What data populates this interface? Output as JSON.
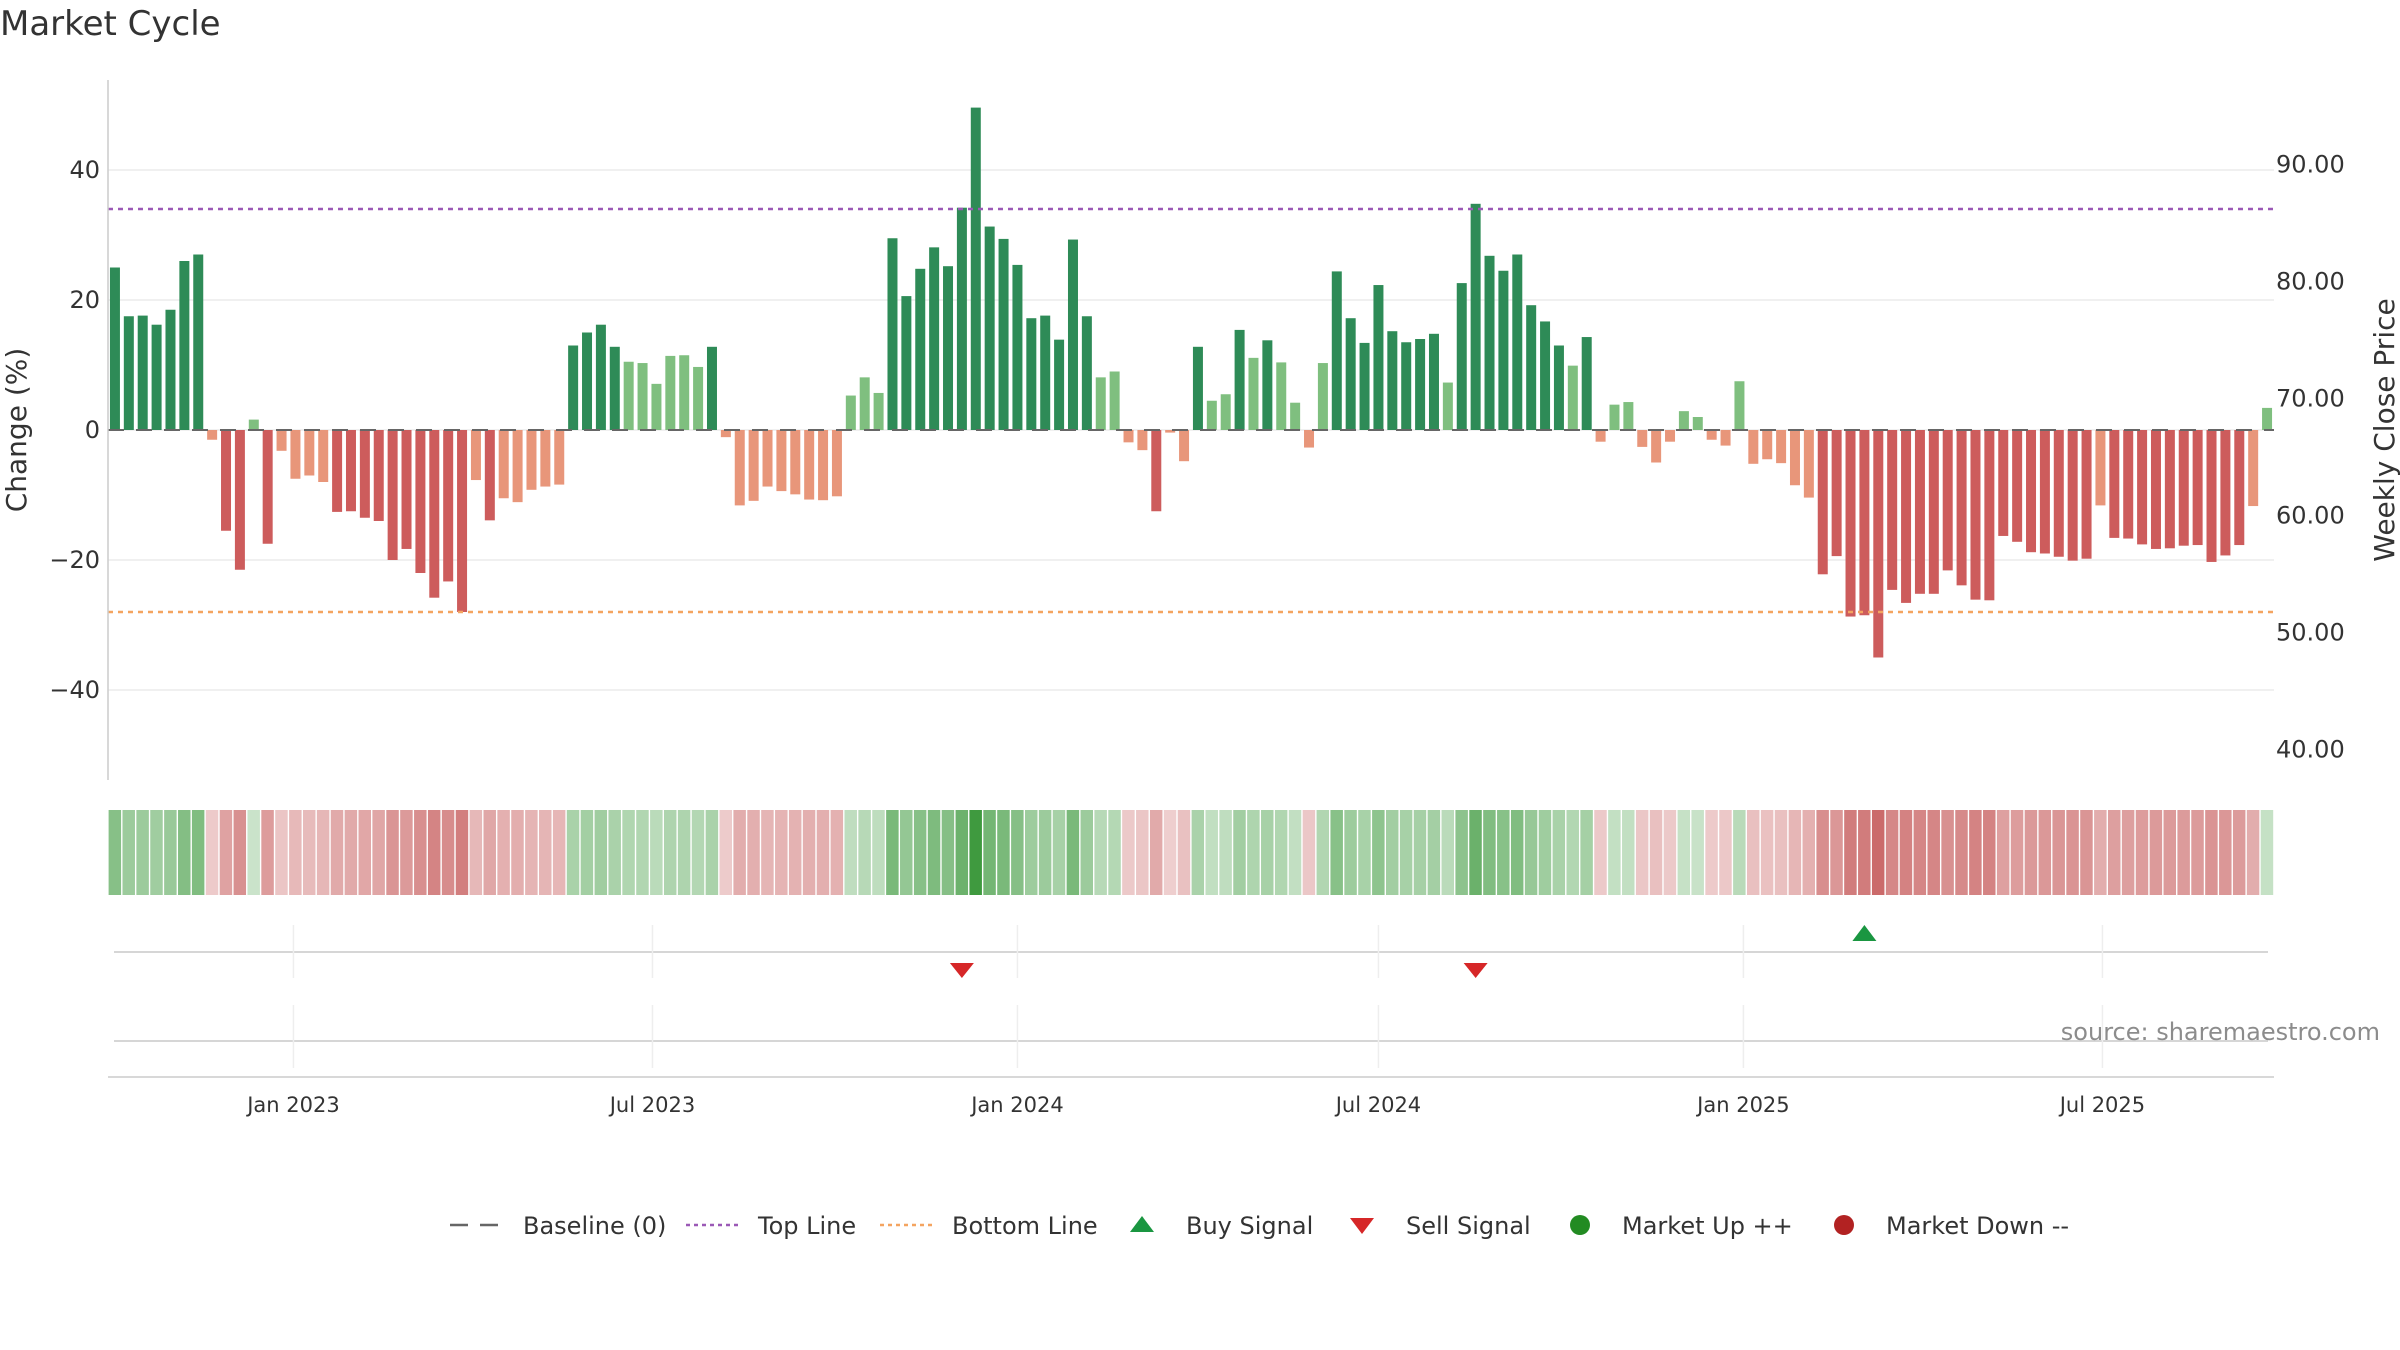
{
  "chart_data": {
    "title": "Market Cycle",
    "type": "bar",
    "x_start_week": "2022-10-03",
    "interval": "weekly",
    "values": [
      25,
      17.5,
      17.6,
      16.2,
      18.5,
      26,
      27,
      -1.5,
      -15.5,
      -21.5,
      1.6,
      -17.5,
      -3.2,
      -7.5,
      -7,
      -8,
      -12.6,
      -12.5,
      -13.5,
      -14,
      -20,
      -18.3,
      -22,
      -25.8,
      -23.3,
      -28,
      -7.7,
      -13.9,
      -10.5,
      -11.1,
      -9.2,
      -8.7,
      -8.4,
      13,
      15,
      16.2,
      12.8,
      10.5,
      10.3,
      7.1,
      11.4,
      11.5,
      9.7,
      12.8,
      -1.1,
      -11.6,
      -10.9,
      -8.7,
      -9.4,
      -9.9,
      -10.7,
      -10.8,
      -10.2,
      5.3,
      8.1,
      5.7,
      29.5,
      20.6,
      24.8,
      28.1,
      25.2,
      34.2,
      49.6,
      31.3,
      29.4,
      25.4,
      17.2,
      17.6,
      13.9,
      29.3,
      17.5,
      8.1,
      9,
      -1.9,
      -3.1,
      -12.5,
      -0.4,
      -4.8,
      12.8,
      4.5,
      5.5,
      15.4,
      11.1,
      13.8,
      10.4,
      4.2,
      -2.7,
      10.3,
      24.4,
      17.2,
      13.4,
      22.3,
      15.2,
      13.5,
      14,
      14.8,
      7.3,
      22.6,
      34.8,
      26.8,
      24.5,
      27,
      19.2,
      16.7,
      13,
      9.9,
      14.3,
      -1.8,
      3.9,
      4.3,
      -2.6,
      -5,
      -1.8,
      2.9,
      2,
      -1.5,
      -2.4,
      7.5,
      -5.2,
      -4.5,
      -5.1,
      -8.5,
      -10.4,
      -22.2,
      -19.4,
      -28.7,
      -28.5,
      -35,
      -24.6,
      -26.6,
      -25.2,
      -25.2,
      -21.6,
      -23.9,
      -26.1,
      -26.2,
      -16.3,
      -17.2,
      -18.8,
      -19,
      -19.5,
      -20.1,
      -19.8,
      -11.6,
      -16.6,
      -16.7,
      -17.6,
      -18.3,
      -18.2,
      -17.8,
      -17.7,
      -20.3,
      -19.3,
      -17.7,
      -11.7,
      3.4
    ],
    "y_left_label": "Change (%)",
    "y_left_ticks": [
      "40",
      "20",
      "0",
      "−20",
      "−40"
    ],
    "y_left_tick_values": [
      40,
      20,
      0,
      -20,
      -40
    ],
    "ylim": [
      -54,
      54
    ],
    "y_right_label": "Weekly Close Price",
    "y_right_ticks": [
      "90.00",
      "80.00",
      "70.00",
      "60.00",
      "50.00",
      "40.00"
    ],
    "y_right_tick_values": [
      90,
      80,
      70,
      60,
      50,
      40
    ],
    "y_right_range": [
      37.3,
      97.3
    ],
    "top_line": 34,
    "bottom_line": -28,
    "x_tick_labels": [
      "Jan 2023",
      "Jul 2023",
      "Jan 2024",
      "Jul 2024",
      "Jan 2025",
      "Jul 2025"
    ],
    "x_tick_dates": [
      "2023-01-01",
      "2023-07-01",
      "2024-01-01",
      "2024-07-01",
      "2025-01-01",
      "2025-07-01"
    ],
    "signals": [
      {
        "type": "sell",
        "date": "2023-12-04"
      },
      {
        "type": "sell",
        "date": "2024-08-19"
      },
      {
        "type": "buy",
        "date": "2025-03-03"
      }
    ],
    "source": "source: sharemaestro.com",
    "colors": {
      "strong_up": "#2e8b57",
      "weak_up": "#7fbf7f",
      "strong_down": "#cd5c5c",
      "weak_down": "#e8967a",
      "top_line": "#9b59b6",
      "bottom_line": "#f4a460",
      "baseline": "#666666",
      "buy": "#1a9641",
      "sell": "#d62728",
      "market_up": "#228b22",
      "market_down": "#b22222"
    },
    "legend": [
      {
        "label": "Baseline (0)",
        "marker": "dash"
      },
      {
        "label": "Top Line",
        "marker": "dot-purple"
      },
      {
        "label": "Bottom Line",
        "marker": "dot-orange"
      },
      {
        "label": "Buy Signal",
        "marker": "triangle-up"
      },
      {
        "label": "Sell Signal",
        "marker": "triangle-down"
      },
      {
        "label": "Market Up ++",
        "marker": "circle-green"
      },
      {
        "label": "Market Down --",
        "marker": "circle-red"
      }
    ]
  }
}
